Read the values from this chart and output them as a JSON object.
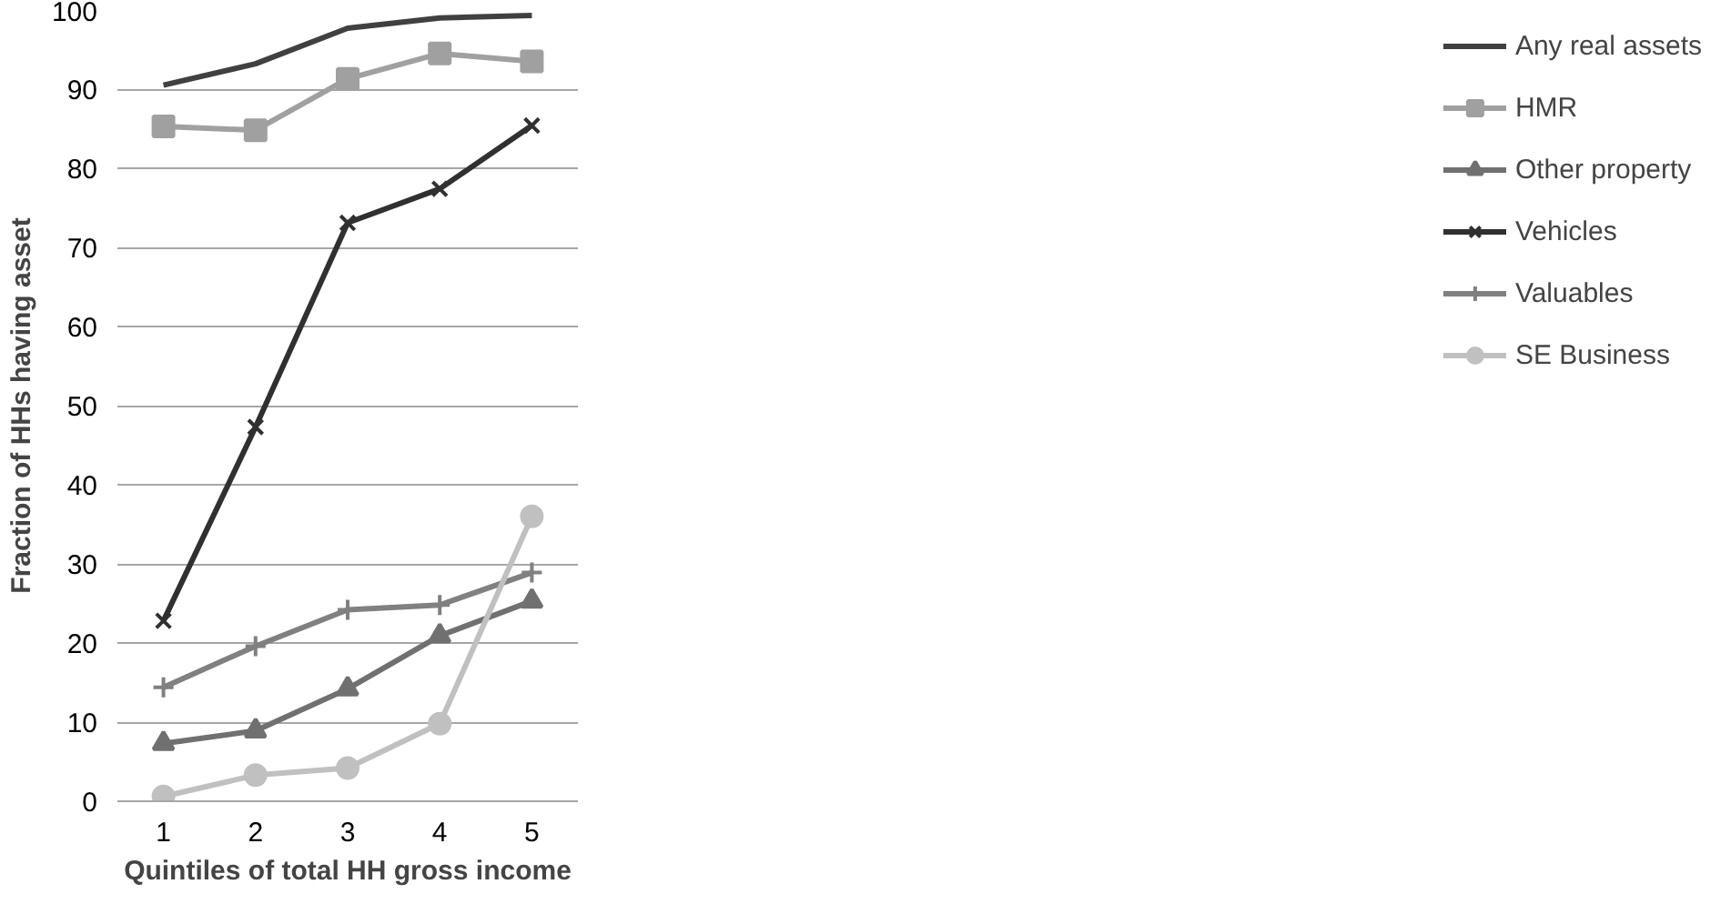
{
  "chart_data": {
    "type": "line",
    "xlabel": "Quintiles of total HH gross income",
    "ylabel": "Fraction of HHs having asset",
    "categories": [
      "1",
      "2",
      "3",
      "4",
      "5"
    ],
    "ylim": [
      0,
      100
    ],
    "yticks": [
      0,
      10,
      20,
      30,
      40,
      50,
      60,
      70,
      80,
      90,
      100
    ],
    "grid": "y",
    "legend": "right",
    "series": [
      {
        "name": "Any real assets",
        "color": "#404040",
        "marker": "none",
        "values": [
          90.5,
          93.2,
          97.7,
          99.0,
          99.3
        ]
      },
      {
        "name": "HMR",
        "color": "#a0a0a0",
        "marker": "square",
        "values": [
          85.3,
          84.8,
          91.3,
          94.5,
          93.5
        ]
      },
      {
        "name": "Other property",
        "color": "#707070",
        "marker": "triangle",
        "values": [
          7.3,
          8.9,
          14.2,
          20.9,
          25.3
        ]
      },
      {
        "name": "Vehicles",
        "color": "#303030",
        "marker": "cross",
        "values": [
          22.8,
          47.3,
          73.1,
          77.4,
          85.4
        ]
      },
      {
        "name": "Valuables",
        "color": "#808080",
        "marker": "plus",
        "values": [
          14.4,
          19.6,
          24.2,
          24.8,
          28.9
        ]
      },
      {
        "name": "SE Business",
        "color": "#c0c0c0",
        "marker": "circle",
        "values": [
          0.6,
          3.3,
          4.2,
          9.8,
          36.0
        ]
      }
    ]
  }
}
